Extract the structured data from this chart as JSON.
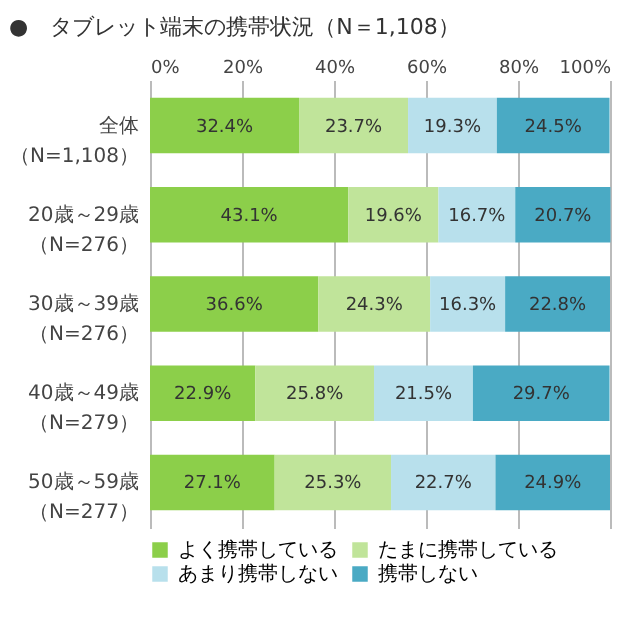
{
  "chart_data": {
    "type": "bar",
    "orientation": "horizontal",
    "stacked": true,
    "title": "●　タブレット端末の携帯状況（N＝1,108）",
    "categories": [
      "全体（N=1,108）",
      "20歳～29歳（N=276）",
      "30歳～39歳（N=276）",
      "40歳～49歳（N=279）",
      "50歳～59歳（N=277）"
    ],
    "series": [
      {
        "name": "よく携帯している",
        "color": "#8ccf4a",
        "values": [
          32.4,
          43.1,
          36.6,
          22.9,
          27.1
        ],
        "value_labels": [
          "32.4%",
          "43.1%",
          "36.6%",
          "22.9%",
          "27.1%"
        ]
      },
      {
        "name": "たまに携帯している",
        "color": "#c0e49a",
        "values": [
          23.7,
          19.6,
          24.3,
          25.8,
          25.3
        ],
        "value_labels": [
          "23.7%",
          "19.6%",
          "24.3%",
          "25.8%",
          "25.3%"
        ]
      },
      {
        "name": "あまり携帯しない",
        "color": "#b8e0ec",
        "values": [
          19.3,
          16.7,
          16.3,
          21.5,
          22.7
        ],
        "value_labels": [
          "19.3%",
          "16.7%",
          "16.3%",
          "21.5%",
          "22.7%"
        ]
      },
      {
        "name": "携帯しない",
        "color": "#4aaac4",
        "values": [
          24.5,
          20.7,
          22.8,
          29.7,
          24.9
        ],
        "value_labels": [
          "24.5%",
          "20.7%",
          "22.8%",
          "29.7%",
          "24.9%"
        ]
      }
    ],
    "xlim": [
      0,
      100
    ],
    "xticks": [
      {
        "value": 0,
        "label": "0%"
      },
      {
        "value": 20,
        "label": "20%"
      },
      {
        "value": 40,
        "label": "40%"
      },
      {
        "value": 60,
        "label": "60%"
      },
      {
        "value": 80,
        "label": "80%"
      },
      {
        "value": 100,
        "label": "100%"
      }
    ],
    "grid": "x",
    "legend": "bottom"
  }
}
